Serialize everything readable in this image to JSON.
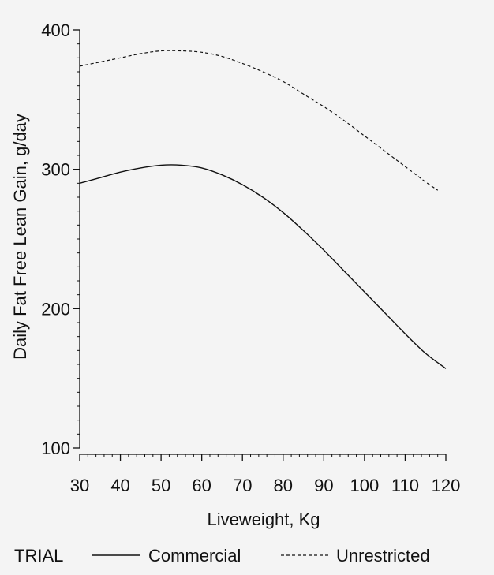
{
  "chart_data": {
    "type": "line",
    "title": "",
    "xlabel": "Liveweight, Kg",
    "ylabel": "Daily Fat Free Lean Gain, g/day",
    "xlim": [
      30,
      120
    ],
    "ylim": [
      100,
      400
    ],
    "xticks": [
      30,
      40,
      50,
      60,
      70,
      80,
      90,
      100,
      110,
      120
    ],
    "yticks": [
      100,
      200,
      300,
      400
    ],
    "x_minor_step": 2,
    "y_minor_step": 10,
    "grid": false,
    "legend": {
      "title": "TRIAL",
      "placement": "bottom"
    },
    "series": [
      {
        "name": "Commercial",
        "style": "solid",
        "color": "#111111",
        "x": [
          30,
          35,
          40,
          45,
          50,
          55,
          60,
          65,
          70,
          75,
          80,
          85,
          90,
          95,
          100,
          105,
          110,
          115,
          120
        ],
        "y": [
          290,
          294,
          298,
          301,
          303,
          303,
          301,
          296,
          289,
          280,
          269,
          256,
          242,
          227,
          212,
          197,
          182,
          168,
          157
        ]
      },
      {
        "name": "Unrestricted",
        "style": "dashed",
        "color": "#111111",
        "x": [
          30,
          35,
          40,
          45,
          50,
          55,
          60,
          65,
          70,
          75,
          80,
          85,
          90,
          95,
          100,
          105,
          110,
          115,
          118
        ],
        "y": [
          374,
          377,
          380,
          383,
          385,
          385,
          384,
          381,
          376,
          370,
          363,
          354,
          345,
          335,
          324,
          313,
          302,
          291,
          285
        ]
      }
    ]
  }
}
